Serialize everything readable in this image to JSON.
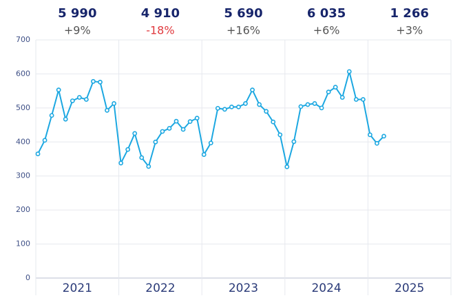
{
  "chart_data": {
    "type": "line",
    "years": [
      "2021",
      "2022",
      "2023",
      "2024",
      "2025"
    ],
    "summary": [
      {
        "total": "5 990",
        "change": "+9%",
        "color": "#555555"
      },
      {
        "total": "4 910",
        "change": "-18%",
        "color": "#e0393e"
      },
      {
        "total": "5 690",
        "change": "+16%",
        "color": "#555555"
      },
      {
        "total": "6 035",
        "change": "+6%",
        "color": "#555555"
      },
      {
        "total": "1 266",
        "change": "+3%",
        "color": "#555555"
      }
    ],
    "values": [
      365,
      405,
      478,
      553,
      467,
      521,
      531,
      525,
      578,
      576,
      493,
      513,
      338,
      378,
      425,
      354,
      328,
      400,
      431,
      440,
      461,
      437,
      460,
      470,
      363,
      397,
      499,
      496,
      503,
      503,
      513,
      553,
      510,
      490,
      459,
      421,
      327,
      401,
      504,
      510,
      513,
      500,
      547,
      561,
      531,
      607,
      525,
      525,
      421,
      396,
      417
    ],
    "color": "#1ba7e1",
    "ylim": [
      0,
      700
    ],
    "yticks": [
      0,
      100,
      200,
      300,
      400,
      500,
      600,
      700
    ],
    "grid": true
  }
}
